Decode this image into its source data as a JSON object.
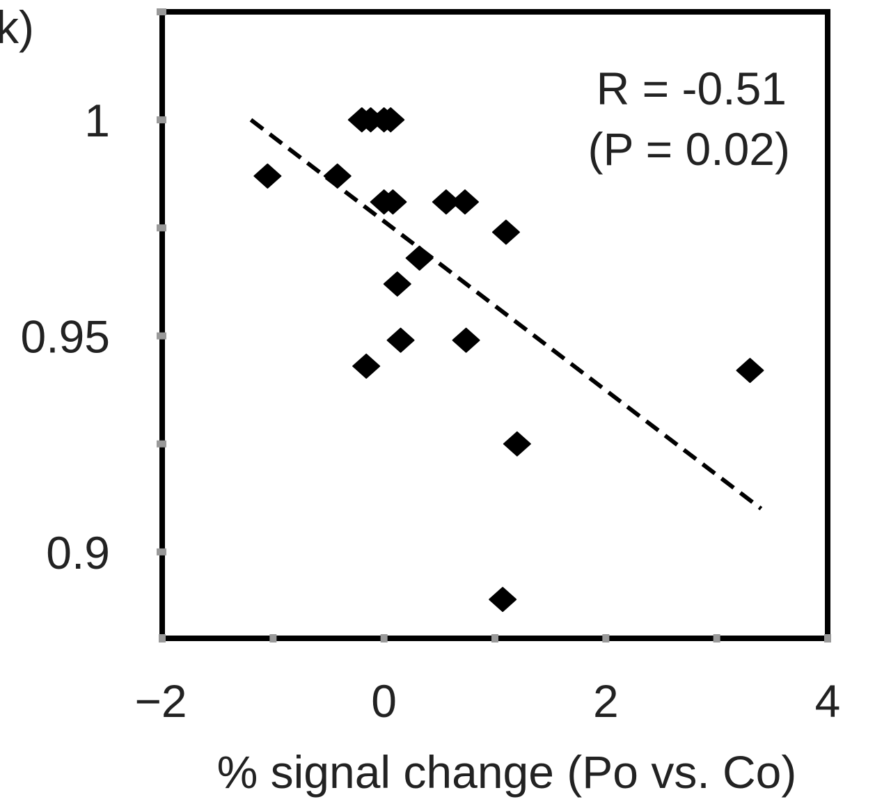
{
  "chart_data": {
    "type": "scatter",
    "panel_label": "k)",
    "xlabel": "% signal change (Po vs. Co)",
    "ylabel": "",
    "xlim": [
      -2,
      4
    ],
    "ylim": [
      0.88,
      1.025
    ],
    "x_ticks": [
      -2,
      0,
      2,
      4
    ],
    "x_tick_labels": [
      "−2",
      "0",
      "2",
      "4"
    ],
    "y_ticks": [
      0.9,
      0.95,
      1
    ],
    "y_tick_labels": [
      "0.9",
      "0.95",
      "1"
    ],
    "annotation": {
      "line1": "R  = -0.51",
      "line2": "(P = 0.02)"
    },
    "grid": false,
    "legend": "none",
    "marker": "diamond",
    "colors": {
      "marker": "#000000",
      "frame": "#000000",
      "trendline": "#000000",
      "tick": "#999999"
    },
    "points": [
      {
        "x": -1.05,
        "y": 0.987
      },
      {
        "x": -0.42,
        "y": 0.987
      },
      {
        "x": -0.2,
        "y": 1.0
      },
      {
        "x": -0.12,
        "y": 1.0
      },
      {
        "x": 0.0,
        "y": 1.0
      },
      {
        "x": 0.06,
        "y": 1.0
      },
      {
        "x": 0.0,
        "y": 0.981
      },
      {
        "x": 0.08,
        "y": 0.981
      },
      {
        "x": 0.56,
        "y": 0.981
      },
      {
        "x": 0.73,
        "y": 0.981
      },
      {
        "x": 1.1,
        "y": 0.974
      },
      {
        "x": 0.32,
        "y": 0.968
      },
      {
        "x": 0.12,
        "y": 0.962
      },
      {
        "x": 0.15,
        "y": 0.949
      },
      {
        "x": 0.74,
        "y": 0.949
      },
      {
        "x": -0.16,
        "y": 0.943
      },
      {
        "x": 3.3,
        "y": 0.942
      },
      {
        "x": 1.2,
        "y": 0.925
      },
      {
        "x": 1.07,
        "y": 0.889
      }
    ],
    "trendline": {
      "style": "dashed",
      "x": [
        -1.2,
        3.4
      ],
      "y": [
        1.0,
        0.91
      ]
    }
  }
}
